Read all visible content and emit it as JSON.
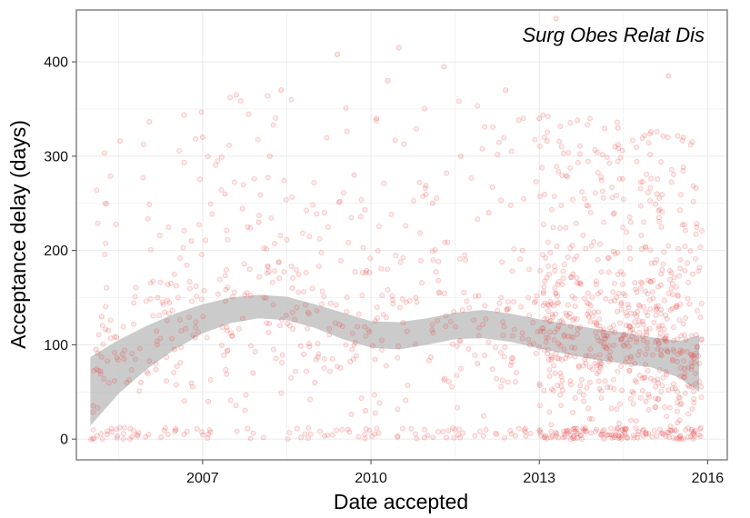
{
  "chart_data": {
    "type": "scatter",
    "title": "",
    "annotation": "Surg Obes Relat Dis",
    "xlabel": "Date accepted",
    "ylabel": "Acceptance delay (days)",
    "x_unit": "year",
    "xlim": [
      2004.75,
      2016.35
    ],
    "ylim": [
      -22,
      455
    ],
    "x_ticks": [
      2007,
      2010,
      2013,
      2016
    ],
    "x_tick_labels": [
      "2007",
      "2010",
      "2013",
      "2016"
    ],
    "y_ticks": [
      0,
      100,
      200,
      300,
      400
    ],
    "y_tick_labels": [
      "0",
      "100",
      "200",
      "300",
      "400"
    ],
    "grid": true,
    "colors": {
      "points": "#e8484a",
      "ribbon": "#bdbdbd",
      "grid": "#ebebeb",
      "border": "#8c8c8c"
    },
    "trend": {
      "x": [
        2005.0,
        2005.5,
        2006.0,
        2006.5,
        2007.0,
        2007.5,
        2008.0,
        2008.5,
        2009.0,
        2009.5,
        2010.0,
        2010.5,
        2011.0,
        2011.5,
        2012.0,
        2012.5,
        2013.0,
        2013.5,
        2014.0,
        2014.5,
        2015.0,
        2015.5,
        2015.85
      ],
      "lower": [
        14,
        48,
        74,
        95,
        112,
        123,
        128,
        126,
        118,
        106,
        97,
        95,
        100,
        106,
        107,
        103,
        96,
        90,
        84,
        80,
        76,
        65,
        50
      ],
      "upper": [
        87,
        105,
        120,
        133,
        143,
        150,
        153,
        151,
        143,
        134,
        125,
        124,
        128,
        134,
        137,
        133,
        127,
        122,
        117,
        113,
        108,
        104,
        110
      ]
    },
    "point_sample": {
      "x": [
        2005.1,
        2005.2,
        2005.3,
        2005.6,
        2005.9,
        2006.2,
        2006.5,
        2006.8,
        2007.0,
        2007.1,
        2007.4,
        2007.6,
        2007.9,
        2008.0,
        2008.2,
        2008.4,
        2008.6,
        2008.8,
        2009.0,
        2009.4,
        2009.7,
        2009.9,
        2010.1,
        2010.3,
        2010.5,
        2010.8,
        2011.1,
        2011.3,
        2011.6,
        2011.9,
        2012.1,
        2012.4,
        2012.7,
        2013.0,
        2013.3,
        2013.6,
        2013.9,
        2014.1,
        2014.4,
        2014.6,
        2014.9,
        2015.1,
        2015.3,
        2015.5,
        2015.7
      ],
      "y": [
        95,
        130,
        5,
        85,
        60,
        150,
        95,
        210,
        320,
        40,
        260,
        365,
        70,
        230,
        300,
        370,
        160,
        90,
        60,
        408,
        280,
        30,
        340,
        380,
        415,
        150,
        250,
        395,
        300,
        80,
        240,
        370,
        200,
        340,
        446,
        175,
        60,
        5,
        330,
        120,
        40,
        260,
        385,
        20,
        90
      ]
    }
  }
}
